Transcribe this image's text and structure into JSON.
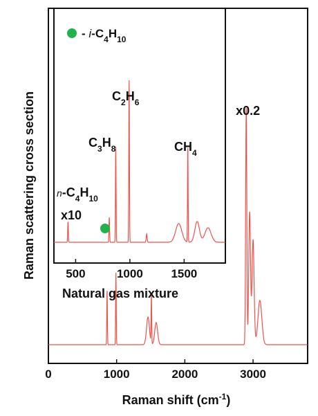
{
  "chart_data": [
    {
      "type": "line",
      "title": "",
      "xlabel": "Raman shift (cm",
      "xlabel_sup": "-1",
      "xlabel_close": ")",
      "ylabel": "Raman scattering cross section",
      "xlim": [
        0,
        3800
      ],
      "x_ticks": [
        0,
        1000,
        2000,
        3000
      ],
      "y_ticks_shown": false,
      "grid": false,
      "series_color": "#f0524a",
      "baseline": 0.05,
      "peaks": [
        {
          "x": 860,
          "h": 0.2,
          "w": 6
        },
        {
          "x": 990,
          "h": 0.26,
          "w": 6
        },
        {
          "x": 1460,
          "h": 0.1,
          "w": 30
        },
        {
          "x": 1510,
          "h": 0.18,
          "w": 6
        },
        {
          "x": 1580,
          "h": 0.08,
          "w": 30
        },
        {
          "x": 2900,
          "h": 0.86,
          "w": 12
        },
        {
          "x": 2950,
          "h": 0.48,
          "w": 18
        },
        {
          "x": 3000,
          "h": 0.38,
          "w": 22
        },
        {
          "x": 3100,
          "h": 0.16,
          "w": 40
        }
      ],
      "annotations": [
        {
          "text": "x0.2",
          "x": 2950,
          "y": 0.88
        }
      ]
    },
    {
      "type": "line",
      "title": "Natural gas mixture",
      "xlim": [
        300,
        1880
      ],
      "x_ticks": [
        500,
        1000,
        1500
      ],
      "y_ticks_shown": false,
      "series_color": "#f0524a",
      "baseline": 0.07,
      "peaks": [
        {
          "x": 430,
          "h": 0.1,
          "w": 4
        },
        {
          "x": 810,
          "h": 0.12,
          "w": 4
        },
        {
          "x": 870,
          "h": 0.46,
          "w": 4
        },
        {
          "x": 993,
          "h": 0.78,
          "w": 4
        },
        {
          "x": 1155,
          "h": 0.04,
          "w": 6
        },
        {
          "x": 1450,
          "h": 0.09,
          "w": 40
        },
        {
          "x": 1534,
          "h": 0.46,
          "w": 4
        },
        {
          "x": 1620,
          "h": 0.1,
          "w": 30
        },
        {
          "x": 1720,
          "h": 0.07,
          "w": 40
        }
      ],
      "legend": {
        "marker_color": "#22b14c",
        "label_prefix": "- ",
        "label_italic": "i",
        "label_rest": "-C",
        "sub1": "4",
        "h": "H",
        "sub2": "10"
      },
      "labels": [
        {
          "id": "c2h6",
          "parts": [
            "C",
            "2",
            "H",
            "6"
          ]
        },
        {
          "id": "c3h8",
          "parts": [
            "C",
            "3",
            "H",
            "8"
          ]
        },
        {
          "id": "ch4",
          "parts": [
            "CH",
            "4"
          ]
        },
        {
          "id": "nbutane",
          "prefix": "n",
          "parts": [
            "-C",
            "4",
            "H",
            "10"
          ]
        },
        {
          "id": "x10",
          "text": "x10"
        }
      ]
    }
  ]
}
